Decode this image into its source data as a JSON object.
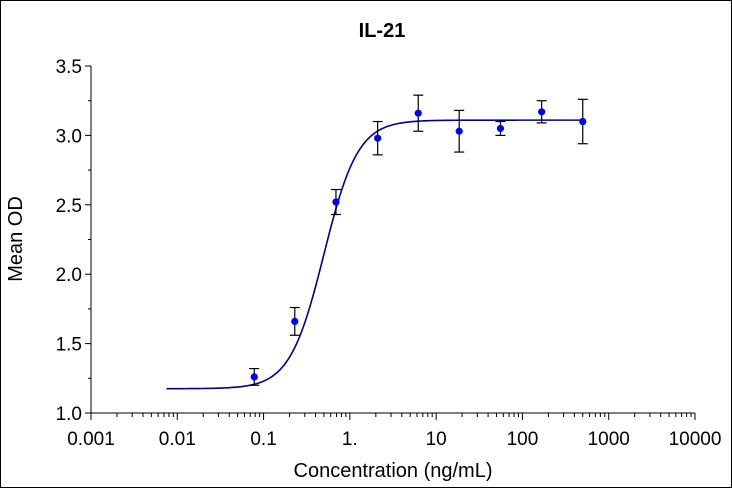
{
  "chart_data": {
    "type": "scatter",
    "title": "IL-21",
    "xlabel": "Concentration (ng/mL)",
    "ylabel": "Mean OD",
    "xscale": "log",
    "xlim": [
      0.001,
      10000
    ],
    "ylim": [
      1.0,
      3.5
    ],
    "x_ticks": [
      0.001,
      0.01,
      0.1,
      1,
      10,
      100,
      1000,
      10000
    ],
    "x_tick_labels": [
      "0.001",
      "0.01",
      "0.1",
      "1.",
      "10",
      "100",
      "1000",
      "10000"
    ],
    "y_ticks": [
      1.0,
      1.5,
      2.0,
      2.5,
      3.0,
      3.5
    ],
    "y_tick_labels": [
      "1.0",
      "1.5",
      "2.0",
      "2.5",
      "3.0",
      "3.5"
    ],
    "grid": false,
    "points": [
      {
        "x": 0.078,
        "y": 1.26,
        "err": 0.06
      },
      {
        "x": 0.23,
        "y": 1.66,
        "err": 0.1
      },
      {
        "x": 0.69,
        "y": 2.52,
        "err": 0.09
      },
      {
        "x": 2.1,
        "y": 2.98,
        "err": 0.12
      },
      {
        "x": 6.2,
        "y": 3.16,
        "err": 0.13
      },
      {
        "x": 18.5,
        "y": 3.03,
        "err": 0.15
      },
      {
        "x": 55.6,
        "y": 3.05,
        "err": 0.05
      },
      {
        "x": 167,
        "y": 3.17,
        "err": 0.08
      },
      {
        "x": 500,
        "y": 3.1,
        "err": 0.16
      }
    ],
    "fit_curve": {
      "model": "4PL",
      "bottom": 1.175,
      "top": 3.11,
      "ec50": 0.5,
      "hill": 2.2,
      "x_range": [
        0.0075,
        500
      ]
    },
    "colors": {
      "points": "#0000ff",
      "curve": "#00008b",
      "error_bars": "#000000",
      "axes": "#000000"
    }
  }
}
